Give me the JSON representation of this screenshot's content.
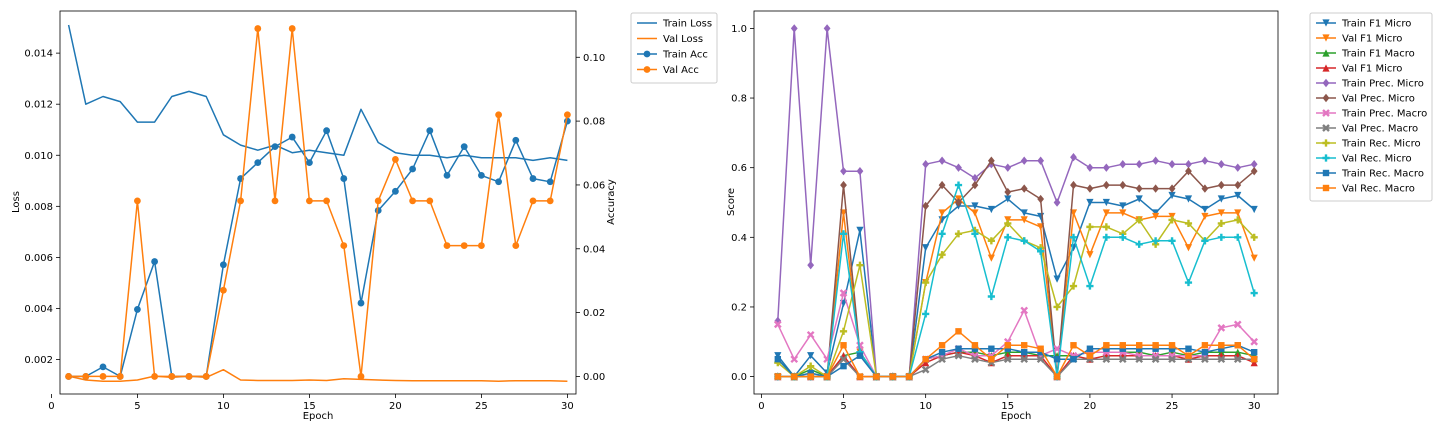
{
  "chart_data": [
    {
      "type": "line",
      "xlabel": "Epoch",
      "ylabel_left": "Loss",
      "ylabel_right": "Accuracy",
      "x": [
        1,
        2,
        3,
        4,
        5,
        6,
        7,
        8,
        9,
        10,
        11,
        12,
        13,
        14,
        15,
        16,
        17,
        18,
        19,
        20,
        21,
        22,
        23,
        24,
        25,
        26,
        27,
        28,
        29,
        30
      ],
      "xlim": [
        0.5,
        30.5
      ],
      "xticks": [
        0,
        5,
        10,
        15,
        20,
        25,
        30
      ],
      "ylim_left": [
        0.00065,
        0.01565
      ],
      "yticks_left": [
        0.002,
        0.004,
        0.006,
        0.008,
        0.01,
        0.012,
        0.014
      ],
      "ytick_labels_left": [
        "0.002",
        "0.004",
        "0.006",
        "0.008",
        "0.010",
        "0.012",
        "0.014"
      ],
      "ylim_right": [
        -0.0055,
        0.1145
      ],
      "yticks_right": [
        0.0,
        0.02,
        0.04,
        0.06,
        0.08,
        0.1
      ],
      "ytick_labels_right": [
        "0.00",
        "0.02",
        "0.04",
        "0.06",
        "0.08",
        "0.10"
      ],
      "legend_position": "outside top-right",
      "series": [
        {
          "name": "Train Loss",
          "axis": "left",
          "color": "#1f77b4",
          "marker": "none",
          "values": [
            0.0151,
            0.012,
            0.0123,
            0.0121,
            0.0113,
            0.0113,
            0.0123,
            0.0125,
            0.0123,
            0.0108,
            0.0104,
            0.0102,
            0.0104,
            0.0101,
            0.0102,
            0.0101,
            0.01,
            0.0118,
            0.0105,
            0.0101,
            0.01,
            0.01,
            0.0099,
            0.01,
            0.0099,
            0.0099,
            0.0099,
            0.0098,
            0.0099,
            0.0098
          ]
        },
        {
          "name": "Val Loss",
          "axis": "left",
          "color": "#ff7f0e",
          "marker": "none",
          "values": [
            0.00135,
            0.0012,
            0.00115,
            0.00115,
            0.0012,
            0.00135,
            0.0013,
            0.00135,
            0.0013,
            0.0016,
            0.0012,
            0.00118,
            0.00118,
            0.00118,
            0.0012,
            0.00118,
            0.00125,
            0.00122,
            0.0012,
            0.00118,
            0.00117,
            0.00117,
            0.00117,
            0.00117,
            0.00117,
            0.00115,
            0.00117,
            0.00117,
            0.00117,
            0.00115
          ]
        },
        {
          "name": "Train Acc",
          "axis": "right",
          "color": "#1f77b4",
          "marker": "circle",
          "values": [
            0.0,
            0.0,
            0.003,
            0.0,
            0.021,
            0.036,
            0.0,
            0.0,
            0.0,
            0.035,
            0.062,
            0.067,
            0.072,
            0.075,
            0.067,
            0.077,
            0.062,
            0.023,
            0.052,
            0.058,
            0.065,
            0.077,
            0.063,
            0.072,
            0.063,
            0.061,
            0.074,
            0.062,
            0.061,
            0.08
          ]
        },
        {
          "name": "Val Acc",
          "axis": "right",
          "color": "#ff7f0e",
          "marker": "circle",
          "values": [
            0.0,
            0.0,
            0.0,
            0.0,
            0.055,
            0.0,
            0.0,
            0.0,
            0.0,
            0.027,
            0.055,
            0.109,
            0.055,
            0.109,
            0.055,
            0.055,
            0.041,
            0.0,
            0.055,
            0.068,
            0.055,
            0.055,
            0.041,
            0.041,
            0.041,
            0.082,
            0.041,
            0.055,
            0.055,
            0.082
          ]
        }
      ]
    },
    {
      "type": "line",
      "xlabel": "Epoch",
      "ylabel": "Score",
      "x": [
        1,
        2,
        3,
        4,
        5,
        6,
        7,
        8,
        9,
        10,
        11,
        12,
        13,
        14,
        15,
        16,
        17,
        18,
        19,
        20,
        21,
        22,
        23,
        24,
        25,
        26,
        27,
        28,
        29,
        30
      ],
      "xlim": [
        -0.45,
        31.45
      ],
      "xticks": [
        0,
        5,
        10,
        15,
        20,
        25,
        30
      ],
      "ylim": [
        -0.05,
        1.05
      ],
      "yticks": [
        0.0,
        0.2,
        0.4,
        0.6,
        0.8,
        1.0
      ],
      "ytick_labels": [
        "0.0",
        "0.2",
        "0.4",
        "0.6",
        "0.8",
        "1.0"
      ],
      "legend_position": "outside top-right",
      "series": [
        {
          "name": "Train F1 Micro",
          "color": "#1f77b4",
          "marker": "tri_down",
          "values": [
            0.06,
            0.0,
            0.06,
            0.01,
            0.21,
            0.42,
            0.0,
            0.0,
            0.0,
            0.37,
            0.45,
            0.49,
            0.49,
            0.48,
            0.51,
            0.47,
            0.46,
            0.28,
            0.37,
            0.5,
            0.5,
            0.49,
            0.51,
            0.47,
            0.52,
            0.51,
            0.48,
            0.51,
            0.52,
            0.48
          ]
        },
        {
          "name": "Val F1 Micro",
          "color": "#ff7f0e",
          "marker": "tri_down",
          "values": [
            0.0,
            0.0,
            0.0,
            0.0,
            0.47,
            0.07,
            0.0,
            0.0,
            0.0,
            0.27,
            0.47,
            0.51,
            0.47,
            0.34,
            0.45,
            0.45,
            0.43,
            0.0,
            0.47,
            0.35,
            0.47,
            0.47,
            0.45,
            0.46,
            0.46,
            0.37,
            0.46,
            0.47,
            0.47,
            0.34
          ]
        },
        {
          "name": "Train F1 Macro",
          "color": "#2ca02c",
          "marker": "tri_up",
          "values": [
            0.05,
            0.0,
            0.02,
            0.0,
            0.06,
            0.07,
            0.0,
            0.0,
            0.0,
            0.05,
            0.06,
            0.07,
            0.07,
            0.06,
            0.07,
            0.07,
            0.06,
            0.06,
            0.06,
            0.07,
            0.07,
            0.07,
            0.07,
            0.06,
            0.07,
            0.06,
            0.07,
            0.07,
            0.07,
            0.06
          ]
        },
        {
          "name": "Val F1 Micro",
          "color": "#d62728",
          "marker": "tri_up",
          "values": [
            0.0,
            0.0,
            0.0,
            0.0,
            0.06,
            0.0,
            0.0,
            0.0,
            0.0,
            0.04,
            0.06,
            0.07,
            0.06,
            0.04,
            0.06,
            0.06,
            0.06,
            0.0,
            0.06,
            0.05,
            0.06,
            0.06,
            0.06,
            0.06,
            0.06,
            0.05,
            0.06,
            0.06,
            0.06,
            0.04
          ]
        },
        {
          "name": "Train Prec. Micro",
          "color": "#9467bd",
          "marker": "diamond",
          "values": [
            0.16,
            1.0,
            0.32,
            1.0,
            0.59,
            0.59,
            0.0,
            0.0,
            0.0,
            0.61,
            0.62,
            0.6,
            0.57,
            0.61,
            0.6,
            0.62,
            0.62,
            0.5,
            0.63,
            0.6,
            0.6,
            0.61,
            0.61,
            0.62,
            0.61,
            0.61,
            0.62,
            0.61,
            0.6,
            0.61
          ]
        },
        {
          "name": "Val Prec. Micro",
          "color": "#8c564b",
          "marker": "diamond",
          "values": [
            0.0,
            0.0,
            0.0,
            0.0,
            0.55,
            0.07,
            0.0,
            0.0,
            0.0,
            0.49,
            0.55,
            0.5,
            0.55,
            0.62,
            0.53,
            0.54,
            0.51,
            0.0,
            0.55,
            0.54,
            0.55,
            0.55,
            0.54,
            0.54,
            0.54,
            0.59,
            0.54,
            0.55,
            0.55,
            0.59
          ]
        },
        {
          "name": "Train Prec. Macro",
          "color": "#e377c2",
          "marker": "x",
          "values": [
            0.15,
            0.05,
            0.12,
            0.05,
            0.24,
            0.09,
            0.0,
            0.0,
            0.0,
            0.05,
            0.06,
            0.08,
            0.06,
            0.06,
            0.1,
            0.19,
            0.06,
            0.08,
            0.06,
            0.07,
            0.07,
            0.07,
            0.06,
            0.06,
            0.06,
            0.06,
            0.06,
            0.14,
            0.15,
            0.1
          ]
        },
        {
          "name": "Val Prec. Macro",
          "color": "#7f7f7f",
          "marker": "x",
          "values": [
            0.0,
            0.0,
            0.0,
            0.0,
            0.05,
            0.0,
            0.0,
            0.0,
            0.0,
            0.02,
            0.05,
            0.06,
            0.05,
            0.04,
            0.05,
            0.05,
            0.05,
            0.0,
            0.05,
            0.05,
            0.05,
            0.05,
            0.05,
            0.05,
            0.05,
            0.05,
            0.05,
            0.05,
            0.05,
            0.05
          ]
        },
        {
          "name": "Train Rec. Micro",
          "color": "#bcbd22",
          "marker": "plus",
          "values": [
            0.04,
            0.0,
            0.03,
            0.0,
            0.13,
            0.32,
            0.0,
            0.0,
            0.0,
            0.27,
            0.35,
            0.41,
            0.42,
            0.39,
            0.44,
            0.39,
            0.37,
            0.2,
            0.26,
            0.43,
            0.43,
            0.41,
            0.45,
            0.38,
            0.45,
            0.44,
            0.39,
            0.44,
            0.45,
            0.4
          ]
        },
        {
          "name": "Val Rec. Micro",
          "color": "#17becf",
          "marker": "plus",
          "values": [
            0.0,
            0.0,
            0.0,
            0.0,
            0.41,
            0.07,
            0.0,
            0.0,
            0.0,
            0.18,
            0.41,
            0.55,
            0.41,
            0.23,
            0.4,
            0.39,
            0.36,
            0.0,
            0.4,
            0.26,
            0.4,
            0.4,
            0.38,
            0.39,
            0.39,
            0.27,
            0.39,
            0.4,
            0.4,
            0.24
          ]
        },
        {
          "name": "Train Rec. Macro",
          "color": "#1f77b4",
          "marker": "square",
          "values": [
            0.05,
            0.0,
            0.01,
            0.0,
            0.03,
            0.06,
            0.0,
            0.0,
            0.0,
            0.05,
            0.07,
            0.08,
            0.08,
            0.08,
            0.08,
            0.07,
            0.07,
            0.05,
            0.05,
            0.08,
            0.08,
            0.08,
            0.08,
            0.08,
            0.08,
            0.08,
            0.07,
            0.08,
            0.09,
            0.07
          ]
        },
        {
          "name": "Val Rec. Macro",
          "color": "#ff7f0e",
          "marker": "square",
          "values": [
            0.0,
            0.0,
            0.0,
            0.0,
            0.09,
            0.0,
            0.0,
            0.0,
            0.0,
            0.05,
            0.09,
            0.13,
            0.09,
            0.05,
            0.09,
            0.09,
            0.08,
            0.0,
            0.09,
            0.06,
            0.09,
            0.09,
            0.09,
            0.09,
            0.09,
            0.06,
            0.09,
            0.09,
            0.09,
            0.05
          ]
        }
      ]
    }
  ]
}
